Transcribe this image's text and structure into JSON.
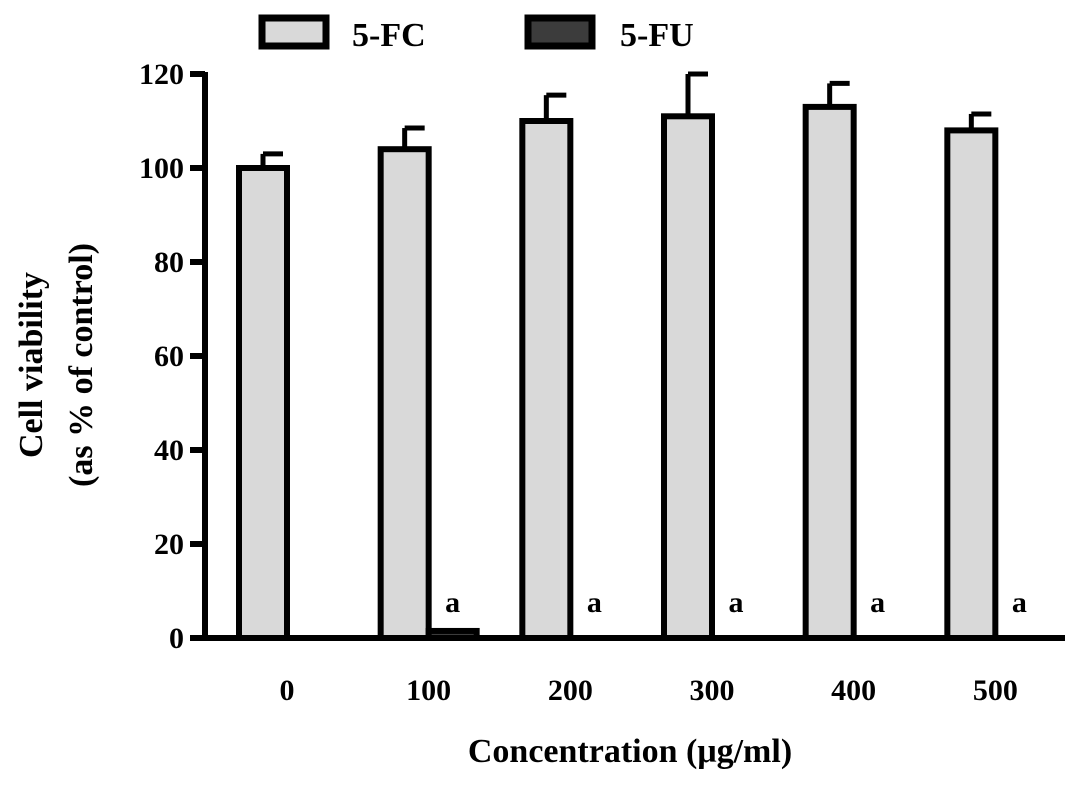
{
  "chart_data": {
    "type": "bar",
    "categories": [
      "0",
      "100",
      "200",
      "300",
      "400",
      "500"
    ],
    "series": [
      {
        "name": "5-FC",
        "values": [
          100,
          104,
          110,
          111,
          113,
          108
        ],
        "errors": [
          3,
          4.5,
          5.5,
          9,
          5,
          3.5
        ],
        "color": "#d9d9d9"
      },
      {
        "name": "5-FU",
        "values": [
          null,
          1.5,
          0,
          0,
          0,
          0
        ],
        "errors": [
          null,
          0,
          0,
          0,
          0,
          0
        ],
        "color": "#3c3c3c"
      }
    ],
    "annotations": [
      "",
      "a",
      "a",
      "a",
      "a",
      "a"
    ],
    "ylim": [
      0,
      120
    ],
    "yticks": [
      0,
      20,
      40,
      60,
      80,
      100,
      120
    ],
    "xlabel": "Concentration (μg/ml)",
    "ylabel_lines": [
      "Cell viability",
      "(as % of control)"
    ],
    "legend_position": "top"
  }
}
